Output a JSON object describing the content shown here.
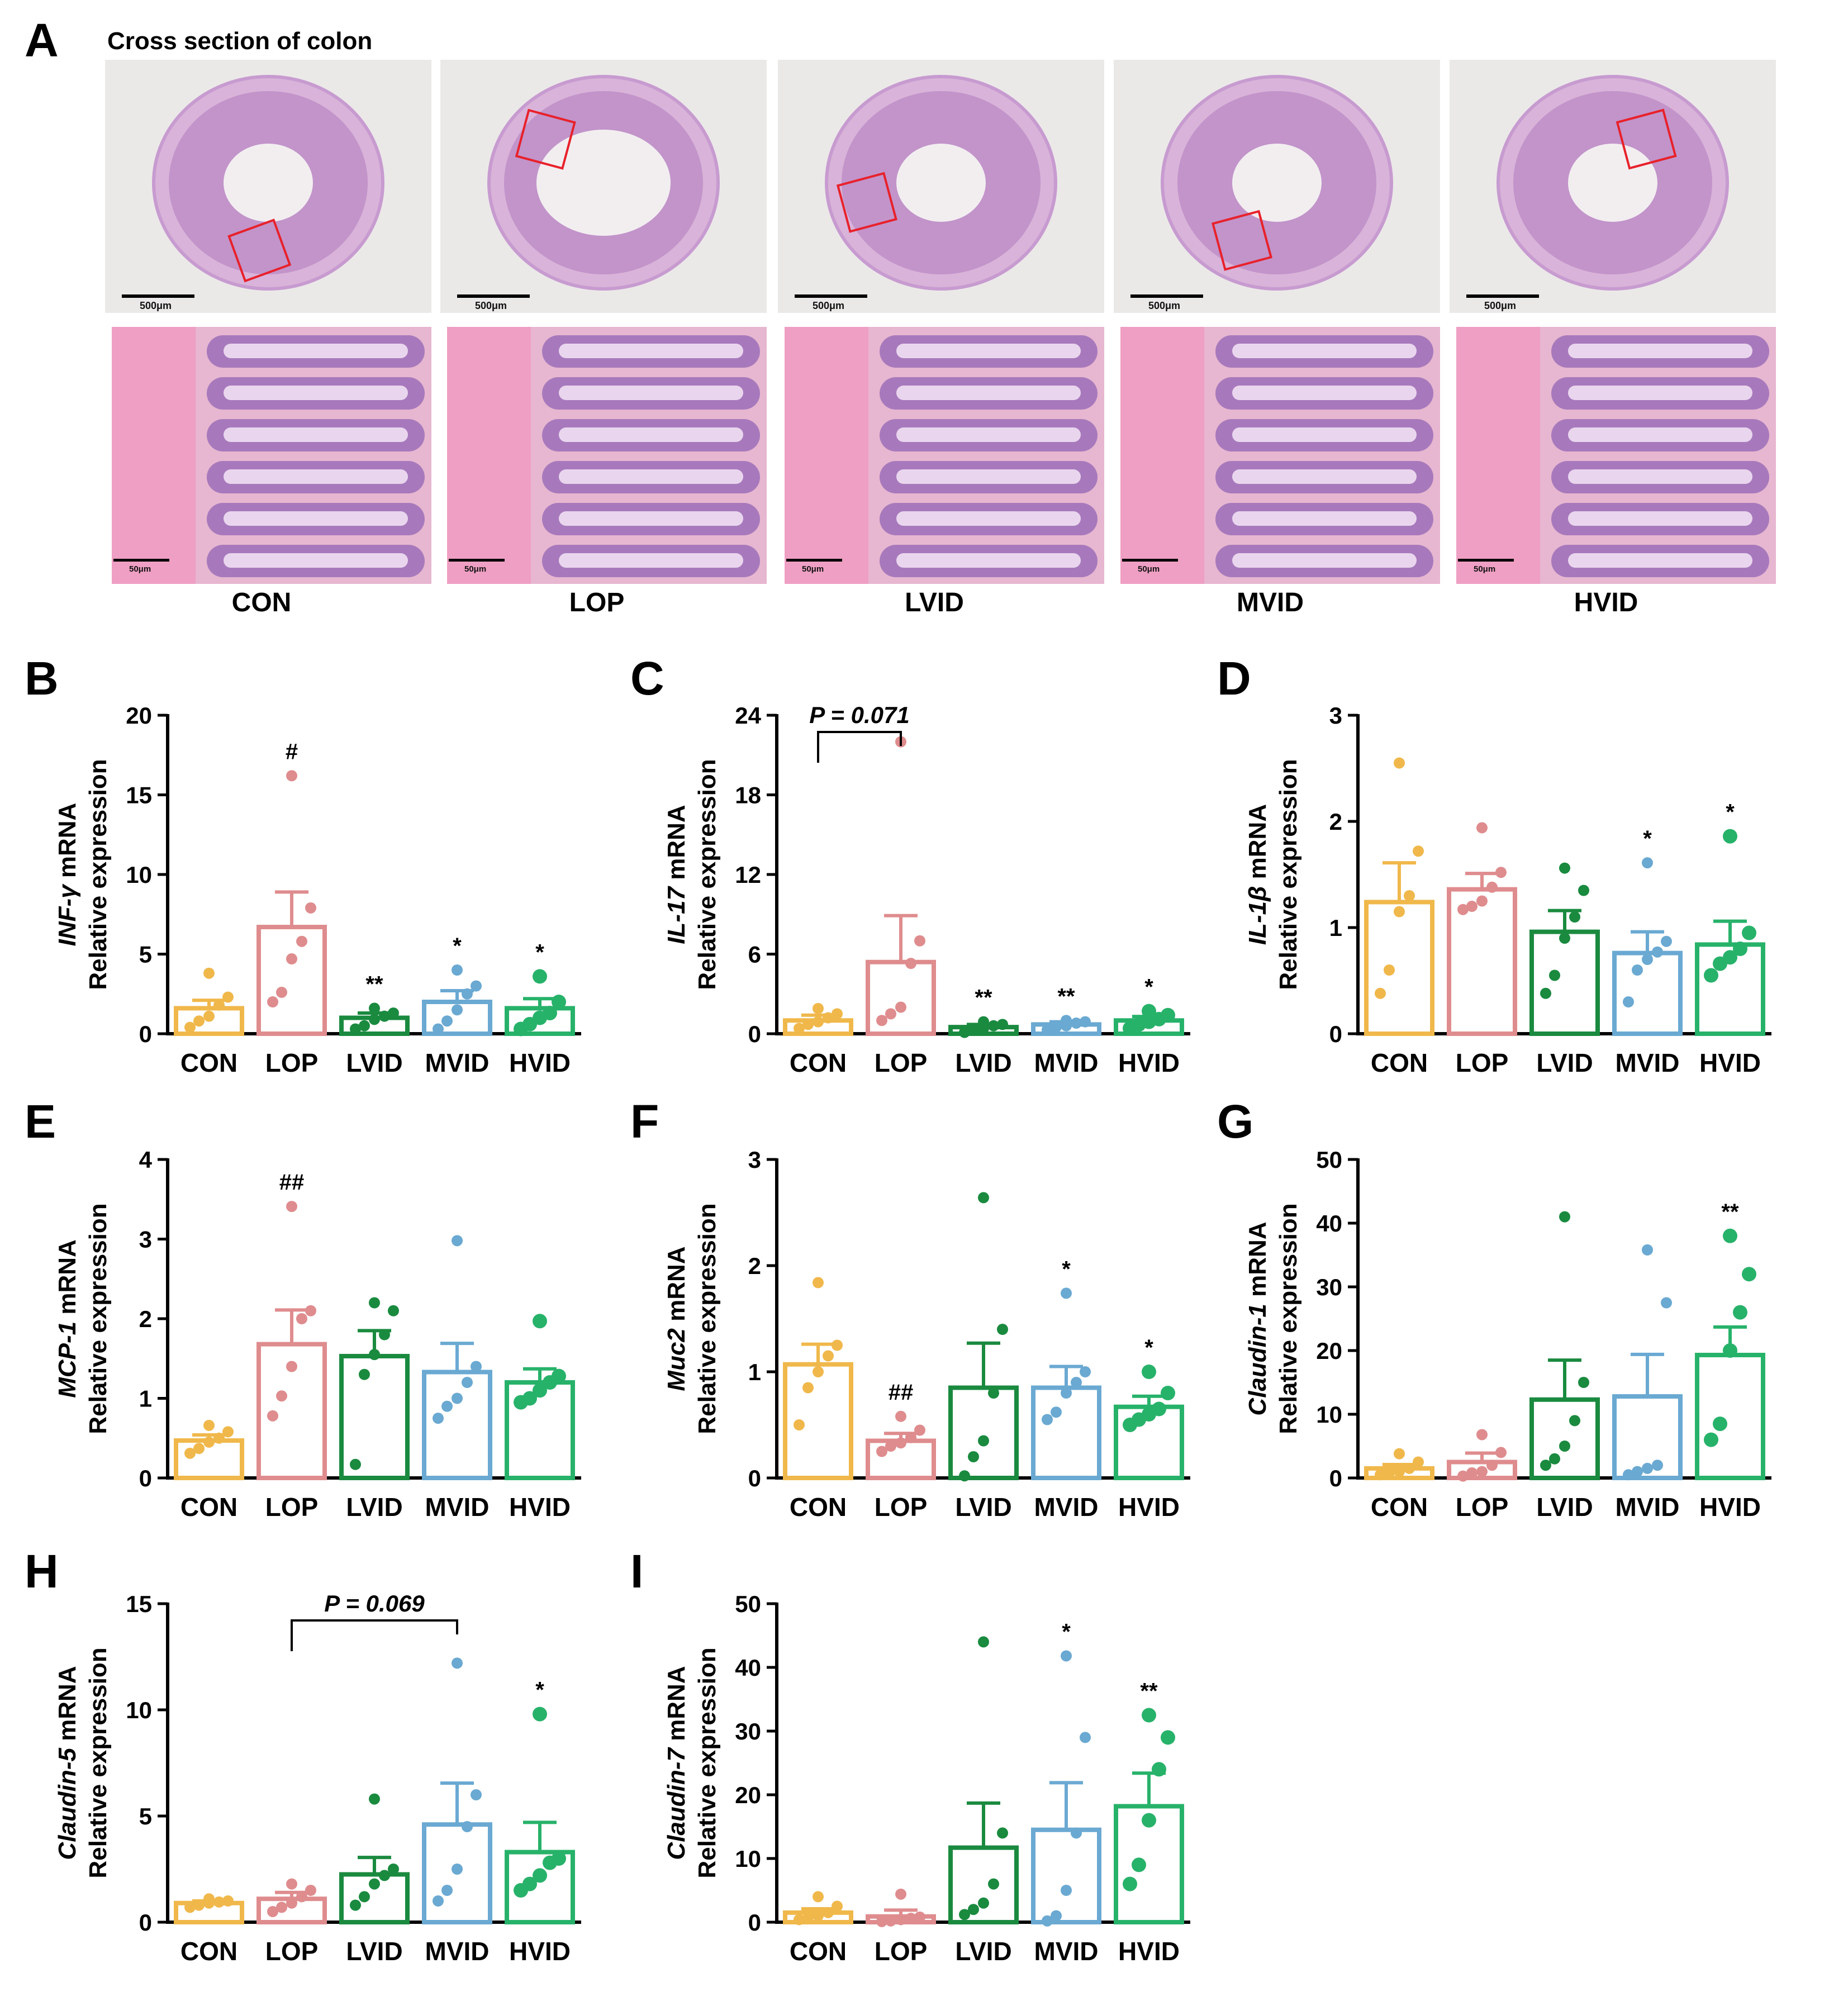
{
  "panel_a": {
    "letter": "A",
    "title": "Cross section of colon",
    "overview_scale": "500μm",
    "zoom_scale": "50μm",
    "groups": [
      "CON",
      "LOP",
      "LVID",
      "MVID",
      "HVID"
    ]
  },
  "colors": {
    "CON": "#f0b84b",
    "LOP": "#df8c8e",
    "LVID": "#1a8a3f",
    "MVID": "#6aa9d2",
    "HVID": "#27b26a",
    "box": "#e8212b",
    "tissue": "#b98ac4",
    "background": "#ebe9e8"
  },
  "chart_data": [
    {
      "panel": "B",
      "type": "bar",
      "ylabel_gene": "INF-γ",
      "ylabel_suffix": " mRNA",
      "ylabel_line2": "Relative expression",
      "categories": [
        "CON",
        "LOP",
        "LVID",
        "MVID",
        "HVID"
      ],
      "ylim": [
        0,
        20
      ],
      "yticks": [
        0,
        5,
        10,
        15,
        20
      ],
      "values": [
        1.6,
        6.7,
        1.0,
        2.0,
        1.6
      ],
      "sem": [
        0.5,
        2.2,
        0.3,
        0.7,
        0.6
      ],
      "points": [
        [
          0.4,
          0.8,
          1.1,
          1.8,
          2.3,
          3.8
        ],
        [
          2.0,
          2.6,
          4.7,
          5.8,
          7.9,
          16.2
        ],
        [
          0.3,
          0.5,
          0.9,
          1.1,
          1.3,
          1.6
        ],
        [
          0.3,
          0.8,
          1.5,
          2.5,
          3.0,
          4.0
        ],
        [
          0.3,
          0.6,
          1.0,
          1.3,
          2.0,
          3.6
        ]
      ],
      "annotations": [
        "",
        "#",
        "**",
        "*",
        "*"
      ]
    },
    {
      "panel": "C",
      "type": "bar",
      "ylabel_gene": "IL-17",
      "ylabel_suffix": " mRNA",
      "ylabel_line2": "Relative expression",
      "categories": [
        "CON",
        "LOP",
        "LVID",
        "MVID",
        "HVID"
      ],
      "ylim": [
        0,
        24
      ],
      "yticks": [
        0,
        6,
        12,
        18,
        24
      ],
      "values": [
        1.0,
        5.4,
        0.5,
        0.7,
        1.0
      ],
      "sem": [
        0.4,
        3.5,
        0.2,
        0.2,
        0.3
      ],
      "points": [
        [
          0.4,
          0.7,
          0.9,
          1.2,
          1.5,
          1.9
        ],
        [
          1.0,
          1.5,
          2.0,
          5.3,
          7.0,
          22.0
        ],
        [
          0.1,
          0.3,
          0.4,
          0.6,
          0.7,
          0.9
        ],
        [
          0.3,
          0.5,
          0.6,
          0.8,
          0.9,
          1.0
        ],
        [
          0.4,
          0.7,
          0.9,
          1.1,
          1.4,
          1.7
        ]
      ],
      "annotations": [
        "",
        "",
        "**",
        "**",
        "*"
      ],
      "bracket": {
        "from": 0,
        "to": 1,
        "label": "P = 0.071"
      }
    },
    {
      "panel": "D",
      "type": "bar",
      "ylabel_gene": "IL-1β",
      "ylabel_suffix": " mRNA",
      "ylabel_line2": "Relative expression",
      "categories": [
        "CON",
        "LOP",
        "LVID",
        "MVID",
        "HVID"
      ],
      "ylim": [
        0,
        3
      ],
      "yticks": [
        0,
        1,
        2,
        3
      ],
      "values": [
        1.24,
        1.36,
        0.96,
        0.76,
        0.84
      ],
      "sem": [
        0.37,
        0.15,
        0.2,
        0.2,
        0.22
      ],
      "points": [
        [
          0.38,
          0.6,
          1.15,
          1.3,
          1.72,
          2.55
        ],
        [
          1.17,
          1.2,
          1.25,
          1.38,
          1.52,
          1.94
        ],
        [
          0.38,
          0.55,
          0.9,
          1.1,
          1.35,
          1.56
        ],
        [
          0.3,
          0.6,
          0.7,
          0.77,
          0.87,
          1.61
        ],
        [
          0.55,
          0.66,
          0.72,
          0.8,
          0.95,
          1.86
        ]
      ],
      "annotations": [
        "",
        "",
        "",
        "*",
        "*"
      ]
    },
    {
      "panel": "E",
      "type": "bar",
      "ylabel_gene": "MCP-1",
      "ylabel_suffix": " mRNA",
      "ylabel_line2": "Relative expression",
      "categories": [
        "CON",
        "LOP",
        "LVID",
        "MVID",
        "HVID"
      ],
      "ylim": [
        0,
        4
      ],
      "yticks": [
        0,
        1,
        2,
        3,
        4
      ],
      "values": [
        0.47,
        1.68,
        1.53,
        1.33,
        1.2
      ],
      "sem": [
        0.07,
        0.43,
        0.32,
        0.36,
        0.17
      ],
      "points": [
        [
          0.31,
          0.37,
          0.45,
          0.5,
          0.58,
          0.66
        ],
        [
          0.78,
          1.03,
          1.4,
          2.0,
          2.1,
          3.41
        ],
        [
          0.17,
          1.3,
          1.55,
          1.8,
          2.1,
          2.2
        ],
        [
          0.75,
          0.9,
          1.0,
          1.2,
          1.4,
          2.98
        ],
        [
          0.95,
          1.0,
          1.1,
          1.2,
          1.28,
          1.97
        ]
      ],
      "annotations": [
        "",
        "##",
        "",
        "",
        ""
      ]
    },
    {
      "panel": "F",
      "type": "bar",
      "ylabel_gene": "Muc2",
      "ylabel_suffix": " mRNA",
      "ylabel_line2": "Relative expression",
      "categories": [
        "CON",
        "LOP",
        "LVID",
        "MVID",
        "HVID"
      ],
      "ylim": [
        0,
        3
      ],
      "yticks": [
        0,
        1,
        2,
        3
      ],
      "ytick_labels": [
        "0",
        "1",
        "2",
        "3"
      ],
      "values": [
        1.07,
        0.35,
        0.85,
        0.85,
        0.67
      ],
      "sem": [
        0.19,
        0.07,
        0.42,
        0.2,
        0.1
      ],
      "points": [
        [
          0.5,
          0.85,
          1.0,
          1.15,
          1.25,
          1.84
        ],
        [
          0.25,
          0.3,
          0.33,
          0.38,
          0.45,
          0.58
        ],
        [
          0.02,
          0.2,
          0.35,
          0.8,
          1.4,
          2.64
        ],
        [
          0.55,
          0.62,
          0.8,
          0.9,
          1.0,
          1.74
        ],
        [
          0.5,
          0.55,
          0.6,
          0.65,
          0.8,
          1.0
        ]
      ],
      "annotations": [
        "",
        "##",
        "",
        "*",
        "*"
      ]
    },
    {
      "panel": "G",
      "type": "bar",
      "ylabel_gene": "Claudin-1",
      "ylabel_suffix": " mRNA",
      "ylabel_line2": "Relative expression",
      "categories": [
        "CON",
        "LOP",
        "LVID",
        "MVID",
        "HVID"
      ],
      "ylim": [
        0,
        50
      ],
      "yticks": [
        0,
        10,
        20,
        30,
        40,
        50
      ],
      "values": [
        1.5,
        2.5,
        12.3,
        12.8,
        19.3
      ],
      "sem": [
        0.6,
        1.4,
        6.2,
        6.6,
        4.4
      ],
      "points": [
        [
          0.5,
          0.8,
          1.0,
          1.5,
          2.5,
          3.8
        ],
        [
          0.3,
          0.8,
          1.0,
          2.0,
          4.0,
          6.8
        ],
        [
          2.0,
          3.0,
          5.0,
          9.0,
          15.0,
          41.0
        ],
        [
          0.5,
          1.0,
          1.5,
          2.0,
          27.5,
          35.8
        ],
        [
          6.0,
          8.5,
          20.0,
          26.0,
          32.0,
          38.0
        ]
      ],
      "annotations": [
        "",
        "",
        "",
        "",
        "**"
      ]
    },
    {
      "panel": "H",
      "type": "bar",
      "ylabel_gene": "Claudin-5",
      "ylabel_suffix": " mRNA",
      "ylabel_line2": "Relative expression",
      "categories": [
        "CON",
        "LOP",
        "LVID",
        "MVID",
        "HVID"
      ],
      "ylim": [
        0,
        15
      ],
      "yticks": [
        0,
        5,
        10,
        15
      ],
      "values": [
        0.9,
        1.1,
        2.25,
        4.6,
        3.3
      ],
      "sem": [
        0.1,
        0.3,
        0.8,
        1.95,
        1.4
      ],
      "points": [
        [
          0.7,
          0.8,
          0.9,
          0.95,
          1.0,
          1.1
        ],
        [
          0.5,
          0.7,
          0.9,
          1.2,
          1.5,
          1.8
        ],
        [
          0.8,
          1.2,
          1.8,
          2.2,
          2.5,
          5.8
        ],
        [
          1.0,
          1.5,
          2.5,
          4.5,
          6.0,
          12.2
        ],
        [
          1.5,
          1.8,
          2.2,
          2.8,
          3.0,
          9.8
        ]
      ],
      "annotations": [
        "",
        "",
        "",
        "",
        "*"
      ],
      "bracket": {
        "from": 1,
        "to": 3,
        "label": "P = 0.069"
      }
    },
    {
      "panel": "I",
      "type": "bar",
      "ylabel_gene": "Claudin-7",
      "ylabel_suffix": " mRNA",
      "ylabel_line2": "Relative expression",
      "categories": [
        "CON",
        "LOP",
        "LVID",
        "MVID",
        "HVID"
      ],
      "ylim": [
        0,
        50
      ],
      "yticks": [
        0,
        10,
        20,
        30,
        40,
        50
      ],
      "values": [
        1.5,
        0.9,
        11.7,
        14.5,
        18.2
      ],
      "sem": [
        0.6,
        1.0,
        7.0,
        7.4,
        5.2
      ],
      "points": [
        [
          0.4,
          0.7,
          1.0,
          1.5,
          2.5,
          4.0
        ],
        [
          0.1,
          0.2,
          0.4,
          0.6,
          0.8,
          4.4
        ],
        [
          1.2,
          2.0,
          3.0,
          6.0,
          14.0,
          44.0
        ],
        [
          0.2,
          1.0,
          5.0,
          14.0,
          29.0,
          41.8
        ],
        [
          6.0,
          9.0,
          16.0,
          24.0,
          29.0,
          32.5
        ]
      ],
      "annotations": [
        "",
        "",
        "",
        "*",
        "**"
      ]
    }
  ]
}
